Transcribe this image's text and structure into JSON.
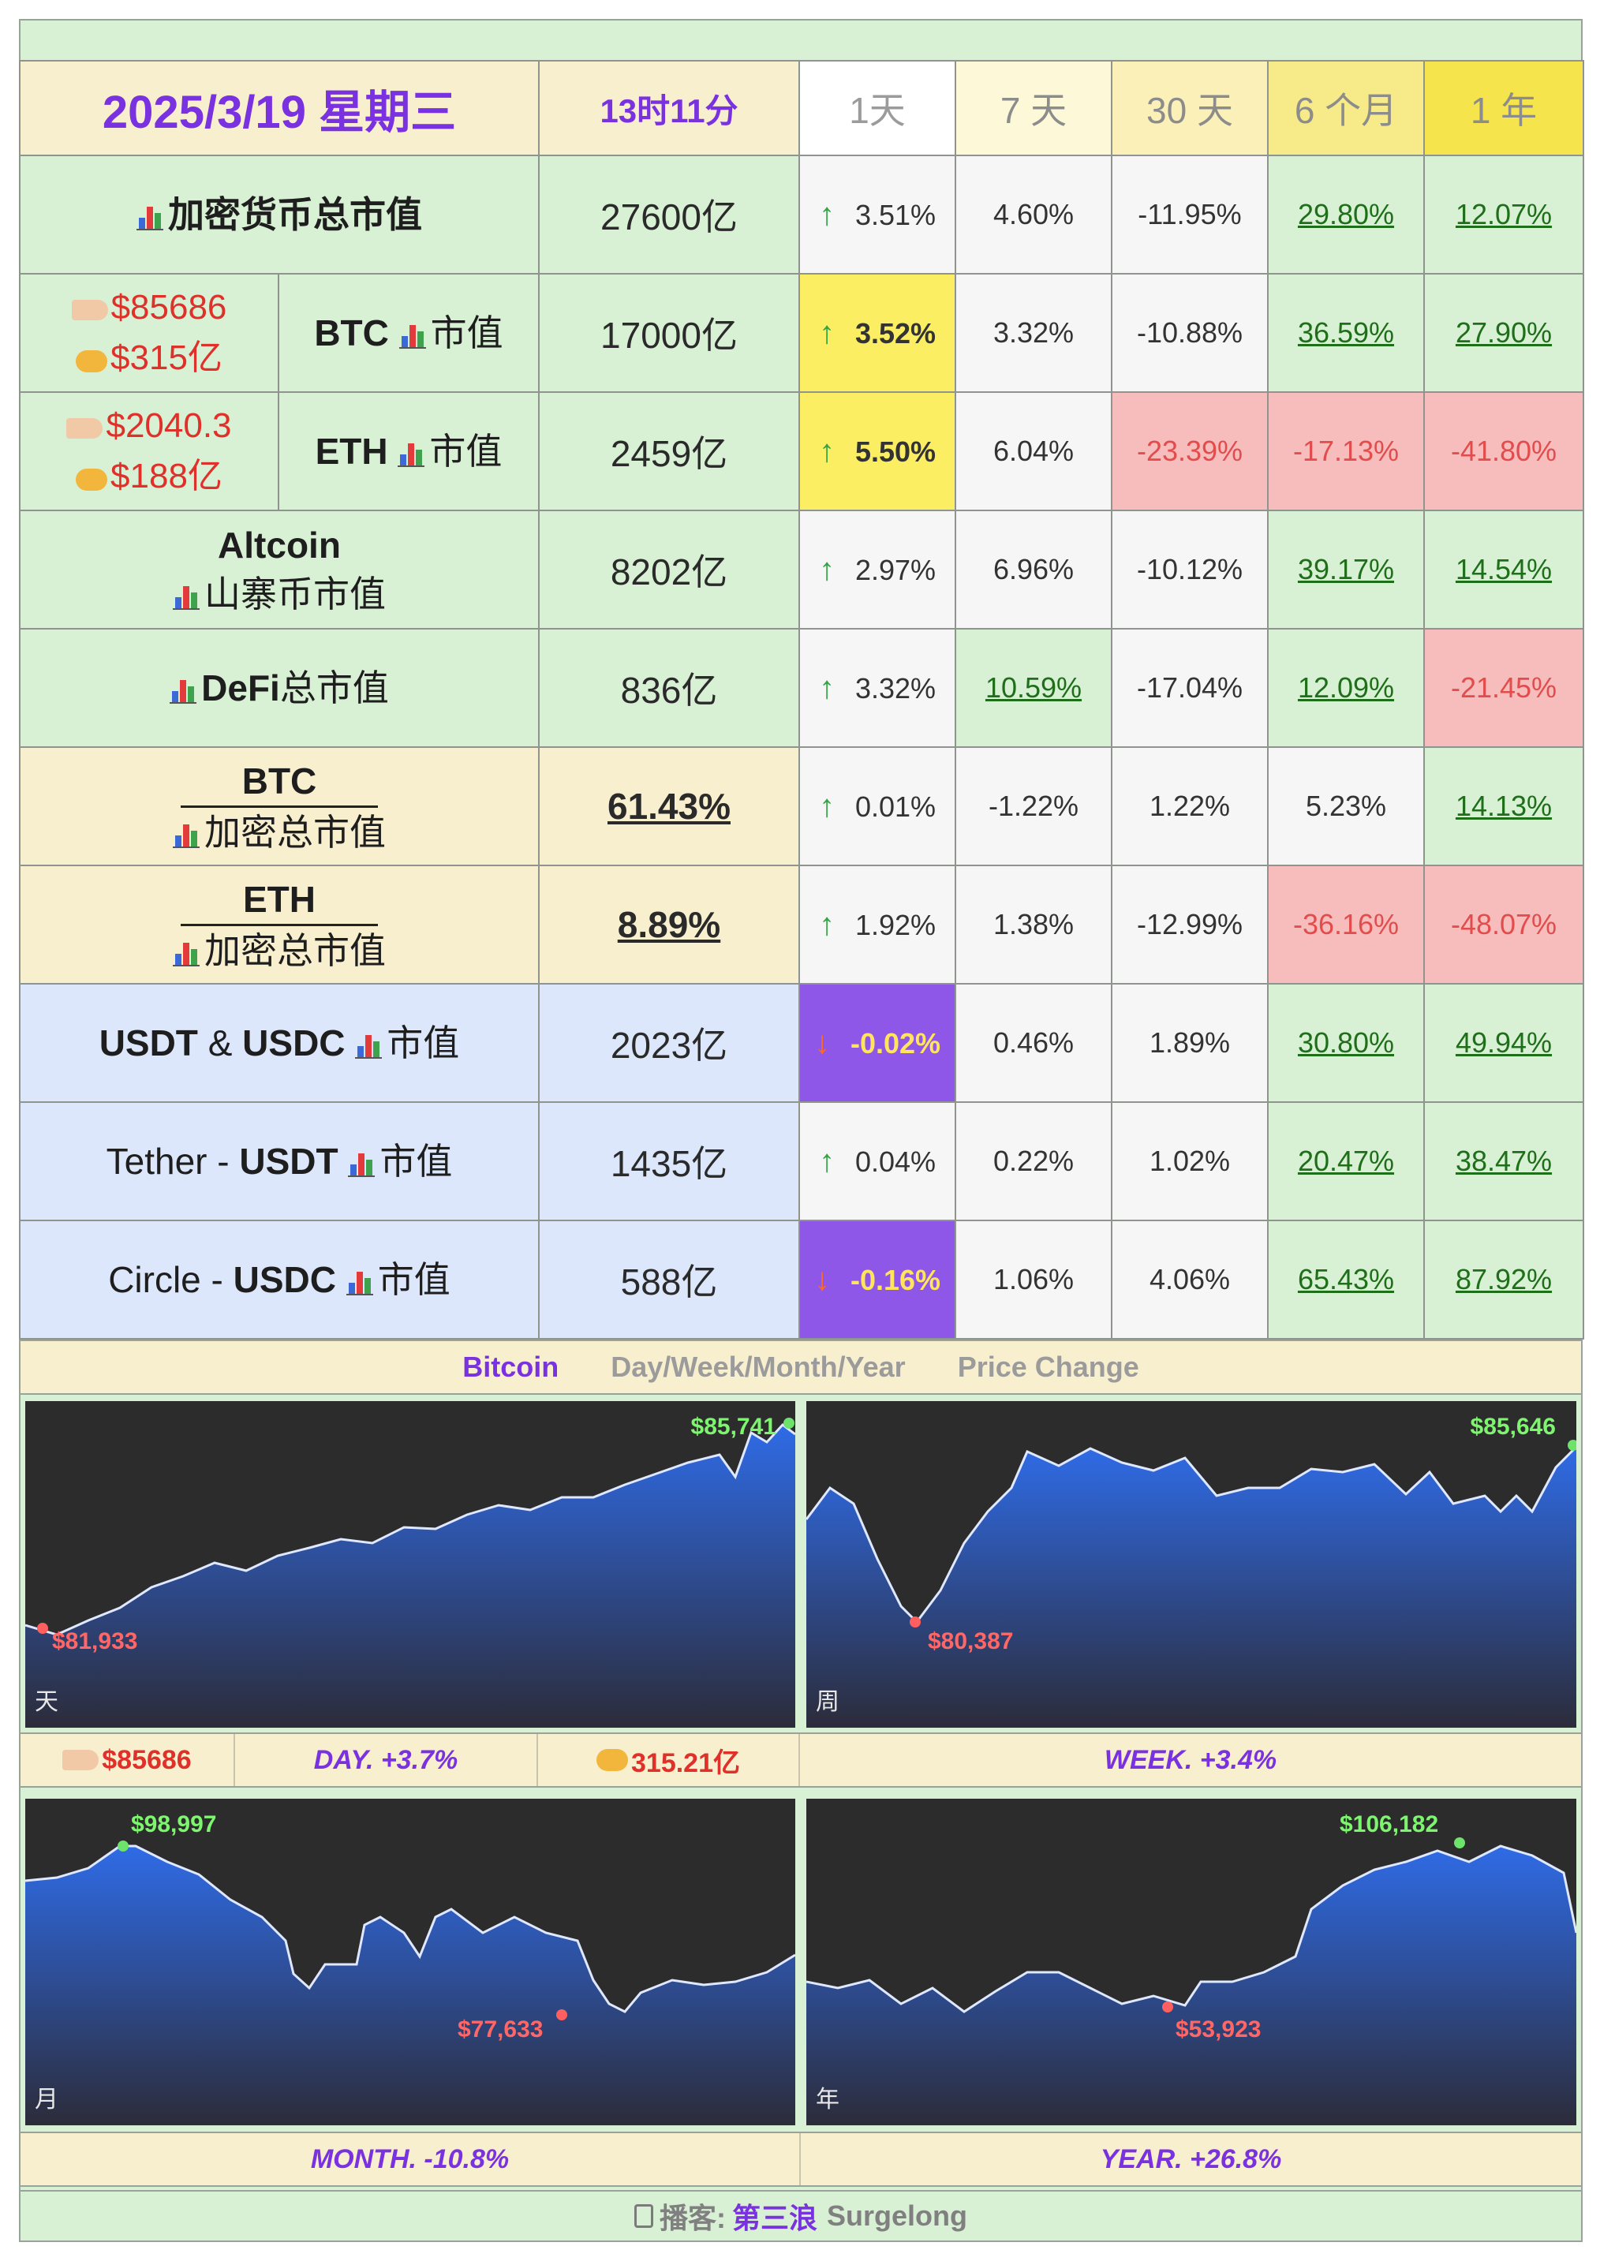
{
  "header": {
    "date": "2025/3/19 星期三",
    "time": "13时11分",
    "periods": [
      "1天",
      "7 天",
      "30 天",
      "6 个月",
      "1 年"
    ]
  },
  "rows": {
    "total": {
      "label": "加密货币总市值",
      "value": "27600亿",
      "pcts": [
        "3.51%",
        "4.60%",
        "-11.95%",
        "29.80%",
        "12.07%"
      ]
    },
    "btc": {
      "price": "$85686",
      "volume": "$315亿",
      "label_bold": "BTC",
      "label_rest": "市值",
      "value": "17000亿",
      "pcts": [
        "3.52%",
        "3.32%",
        "-10.88%",
        "36.59%",
        "27.90%"
      ]
    },
    "eth": {
      "price": "$2040.3",
      "volume": "$188亿",
      "label_bold": "ETH",
      "label_rest": "市值",
      "value": "2459亿",
      "pcts": [
        "5.50%",
        "6.04%",
        "-23.39%",
        "-17.13%",
        "-41.80%"
      ]
    },
    "altcoin": {
      "label_top": "Altcoin",
      "label_bottom": "山寨币市值",
      "value": "8202亿",
      "pcts": [
        "2.97%",
        "6.96%",
        "-10.12%",
        "39.17%",
        "14.54%"
      ]
    },
    "defi": {
      "label_bold": "DeFi",
      "label_rest": "总市值",
      "value": "836亿",
      "pcts": [
        "3.32%",
        "10.59%",
        "-17.04%",
        "12.09%",
        "-21.45%"
      ]
    },
    "btc_dom": {
      "label_top": "BTC",
      "label_bottom": "加密总市值",
      "value": "61.43%",
      "pcts": [
        "0.01%",
        "-1.22%",
        "1.22%",
        "5.23%",
        "14.13%"
      ]
    },
    "eth_dom": {
      "label_top": "ETH",
      "label_bottom": "加密总市值",
      "value": "8.89%",
      "pcts": [
        "1.92%",
        "1.38%",
        "-12.99%",
        "-36.16%",
        "-48.07%"
      ]
    },
    "stable": {
      "label_a": "USDT",
      "label_amp": "&",
      "label_b": "USDC",
      "label_rest": "市值",
      "value": "2023亿",
      "pcts": [
        "-0.02%",
        "0.46%",
        "1.89%",
        "30.80%",
        "49.94%"
      ]
    },
    "usdt": {
      "label_pre": "Tether - ",
      "label_bold": "USDT",
      "label_rest": "市值",
      "value": "1435亿",
      "pcts": [
        "0.04%",
        "0.22%",
        "1.02%",
        "20.47%",
        "38.47%"
      ]
    },
    "usdc": {
      "label_pre": "Circle - ",
      "label_bold": "USDC",
      "label_rest": "市值",
      "value": "588亿",
      "pcts": [
        "-0.16%",
        "1.06%",
        "4.06%",
        "65.43%",
        "87.92%"
      ]
    }
  },
  "charts_section": {
    "title_btc": "Bitcoin",
    "title_mid": "Day/Week/Month/Year",
    "title_end": "Price Change",
    "day": {
      "high": "$85,741",
      "low": "$81,933",
      "corner": "天"
    },
    "week": {
      "high": "$85,646",
      "low": "$80,387",
      "corner": "周"
    },
    "month": {
      "high": "$98,997",
      "low": "$77,633",
      "corner": "月"
    },
    "year": {
      "high": "$106,182",
      "low": "$53,923",
      "corner": "年"
    },
    "row1": {
      "price": "$85686",
      "day": "DAY.  +3.7%",
      "volume": "315.21亿",
      "week": "WEEK.  +3.4%"
    },
    "row2": {
      "month": "MONTH.  -10.8%",
      "year": "YEAR.  +26.8%"
    }
  },
  "footer": {
    "prefix": "播客:",
    "name": "第三浪",
    "en": "Surgelong"
  },
  "colors": {
    "accent": "#7a31df",
    "up": "#33a545",
    "down": "#e24c4c",
    "yellow": "#fbee63",
    "purple": "#8e57e8"
  }
}
